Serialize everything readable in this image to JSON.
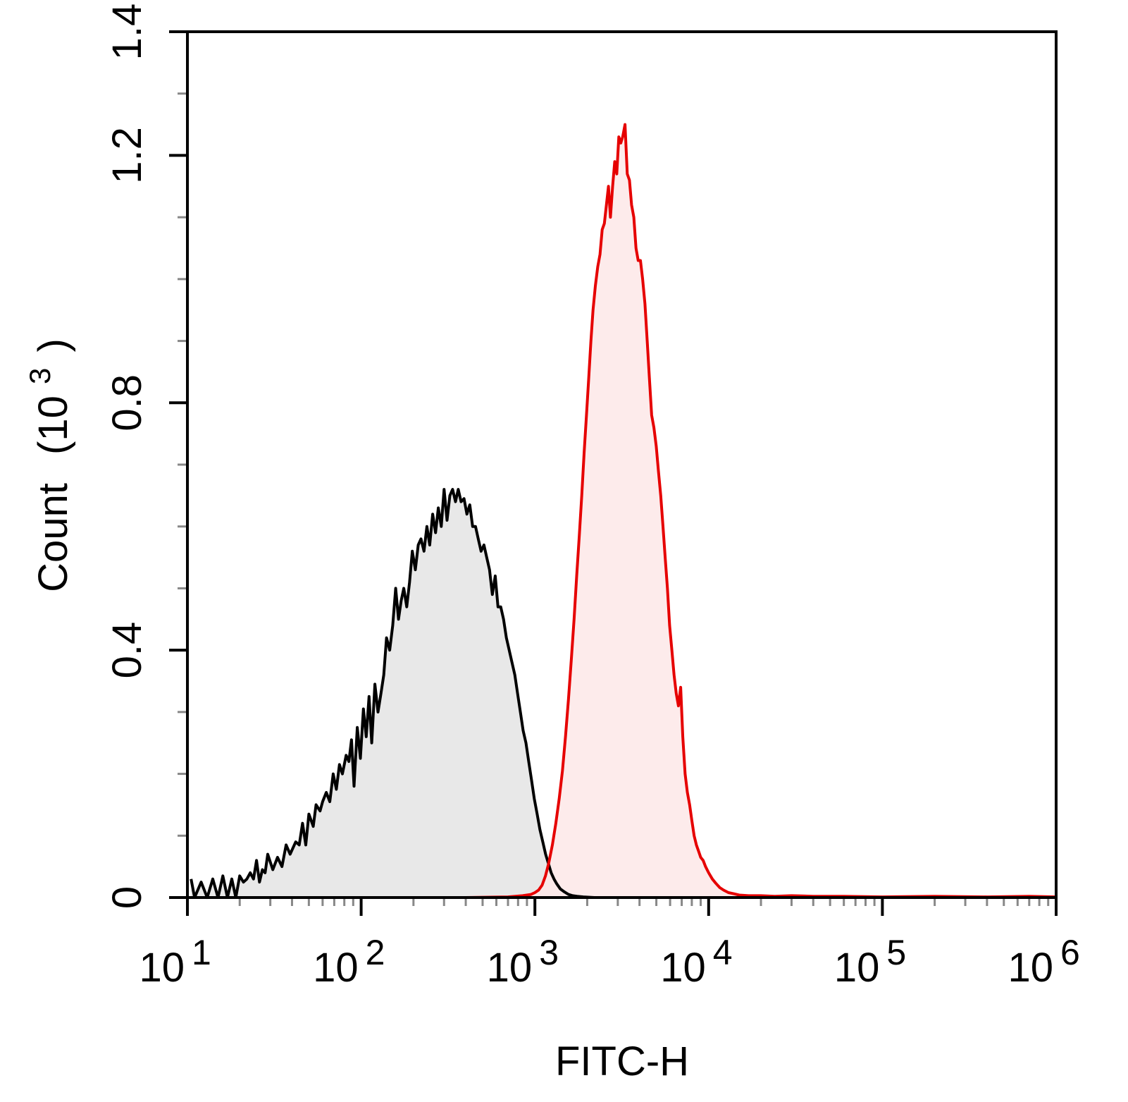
{
  "chart_data": {
    "type": "area",
    "xlabel": "FITC-H",
    "ylabel": "Count (10³)",
    "ylabel_main": "Count",
    "ylabel_unit_open": "(10",
    "ylabel_unit_exp": "3",
    "ylabel_unit_close": ")",
    "x_scale": "log",
    "xlim": [
      10,
      1000000
    ],
    "ylim": [
      0,
      1.4
    ],
    "grid": false,
    "x_ticks": [
      {
        "base": "10",
        "exp": "1",
        "value": 10
      },
      {
        "base": "10",
        "exp": "2",
        "value": 100
      },
      {
        "base": "10",
        "exp": "3",
        "value": 1000
      },
      {
        "base": "10",
        "exp": "4",
        "value": 10000
      },
      {
        "base": "10",
        "exp": "5",
        "value": 100000
      },
      {
        "base": "10",
        "exp": "6",
        "value": 1000000
      }
    ],
    "y_ticks": [
      {
        "label": "0",
        "value": 0
      },
      {
        "label": "0.4",
        "value": 0.4
      },
      {
        "label": "0.8",
        "value": 0.8
      },
      {
        "label": "1.2",
        "value": 1.2
      },
      {
        "label": "1.4",
        "value": 1.4
      }
    ],
    "series": [
      {
        "color": "#000000",
        "fill": "#e8e8e8",
        "points": [
          [
            10.5,
            0.03
          ],
          [
            11,
            0.0
          ],
          [
            12,
            0.025
          ],
          [
            13,
            0.0
          ],
          [
            14,
            0.03
          ],
          [
            15,
            0.0
          ],
          [
            16,
            0.035
          ],
          [
            17,
            0.0
          ],
          [
            18,
            0.03
          ],
          [
            19,
            0.0
          ],
          [
            20,
            0.035
          ],
          [
            21,
            0.025
          ],
          [
            22,
            0.03
          ],
          [
            23,
            0.04
          ],
          [
            24,
            0.03
          ],
          [
            25,
            0.06
          ],
          [
            26,
            0.025
          ],
          [
            27,
            0.045
          ],
          [
            28,
            0.04
          ],
          [
            29,
            0.07
          ],
          [
            31,
            0.045
          ],
          [
            33,
            0.065
          ],
          [
            35,
            0.05
          ],
          [
            37,
            0.085
          ],
          [
            39,
            0.07
          ],
          [
            42,
            0.09
          ],
          [
            44,
            0.085
          ],
          [
            46,
            0.12
          ],
          [
            48,
            0.085
          ],
          [
            50,
            0.135
          ],
          [
            53,
            0.115
          ],
          [
            55,
            0.15
          ],
          [
            58,
            0.14
          ],
          [
            60,
            0.155
          ],
          [
            63,
            0.17
          ],
          [
            66,
            0.155
          ],
          [
            69,
            0.2
          ],
          [
            72,
            0.175
          ],
          [
            75,
            0.215
          ],
          [
            78,
            0.2
          ],
          [
            82,
            0.23
          ],
          [
            85,
            0.22
          ],
          [
            88,
            0.255
          ],
          [
            91,
            0.18
          ],
          [
            95,
            0.275
          ],
          [
            99,
            0.225
          ],
          [
            103,
            0.305
          ],
          [
            107,
            0.26
          ],
          [
            111,
            0.325
          ],
          [
            115,
            0.25
          ],
          [
            120,
            0.345
          ],
          [
            125,
            0.3
          ],
          [
            130,
            0.33
          ],
          [
            135,
            0.36
          ],
          [
            140,
            0.42
          ],
          [
            146,
            0.4
          ],
          [
            152,
            0.44
          ],
          [
            158,
            0.5
          ],
          [
            164,
            0.45
          ],
          [
            170,
            0.48
          ],
          [
            176,
            0.5
          ],
          [
            183,
            0.47
          ],
          [
            190,
            0.51
          ],
          [
            197,
            0.56
          ],
          [
            205,
            0.53
          ],
          [
            213,
            0.57
          ],
          [
            221,
            0.58
          ],
          [
            230,
            0.56
          ],
          [
            239,
            0.6
          ],
          [
            248,
            0.57
          ],
          [
            258,
            0.62
          ],
          [
            268,
            0.59
          ],
          [
            278,
            0.63
          ],
          [
            289,
            0.6
          ],
          [
            300,
            0.66
          ],
          [
            312,
            0.61
          ],
          [
            324,
            0.65
          ],
          [
            336,
            0.66
          ],
          [
            349,
            0.64
          ],
          [
            362,
            0.66
          ],
          [
            376,
            0.64
          ],
          [
            391,
            0.645
          ],
          [
            406,
            0.62
          ],
          [
            422,
            0.635
          ],
          [
            438,
            0.6
          ],
          [
            455,
            0.6
          ],
          [
            472,
            0.58
          ],
          [
            490,
            0.56
          ],
          [
            509,
            0.57
          ],
          [
            528,
            0.55
          ],
          [
            548,
            0.53
          ],
          [
            569,
            0.49
          ],
          [
            591,
            0.52
          ],
          [
            613,
            0.47
          ],
          [
            636,
            0.47
          ],
          [
            660,
            0.45
          ],
          [
            685,
            0.42
          ],
          [
            711,
            0.4
          ],
          [
            738,
            0.38
          ],
          [
            766,
            0.36
          ],
          [
            795,
            0.33
          ],
          [
            825,
            0.3
          ],
          [
            856,
            0.27
          ],
          [
            888,
            0.25
          ],
          [
            921,
            0.22
          ],
          [
            956,
            0.19
          ],
          [
            992,
            0.16
          ],
          [
            1030,
            0.135
          ],
          [
            1069,
            0.11
          ],
          [
            1110,
            0.09
          ],
          [
            1152,
            0.07
          ],
          [
            1196,
            0.055
          ],
          [
            1241,
            0.04
          ],
          [
            1288,
            0.03
          ],
          [
            1337,
            0.022
          ],
          [
            1400,
            0.014
          ],
          [
            1480,
            0.009
          ],
          [
            1560,
            0.005
          ],
          [
            1650,
            0.003
          ],
          [
            1750,
            0.002
          ],
          [
            1900,
            0.001
          ],
          [
            2200,
            0.0
          ],
          [
            3000,
            0.0
          ],
          [
            5000,
            0.0
          ],
          [
            10000,
            0.0
          ],
          [
            1000000,
            0.0
          ]
        ]
      },
      {
        "color": "#e60000",
        "fill": "#fde8e8",
        "points": [
          [
            10,
            0.0
          ],
          [
            400,
            0.0
          ],
          [
            700,
            0.001
          ],
          [
            850,
            0.003
          ],
          [
            950,
            0.005
          ],
          [
            1000,
            0.008
          ],
          [
            1050,
            0.012
          ],
          [
            1100,
            0.02
          ],
          [
            1150,
            0.035
          ],
          [
            1200,
            0.055
          ],
          [
            1260,
            0.085
          ],
          [
            1320,
            0.12
          ],
          [
            1380,
            0.16
          ],
          [
            1440,
            0.205
          ],
          [
            1500,
            0.26
          ],
          [
            1560,
            0.32
          ],
          [
            1620,
            0.385
          ],
          [
            1680,
            0.45
          ],
          [
            1740,
            0.52
          ],
          [
            1800,
            0.585
          ],
          [
            1860,
            0.65
          ],
          [
            1920,
            0.72
          ],
          [
            1980,
            0.78
          ],
          [
            2040,
            0.84
          ],
          [
            2100,
            0.9
          ],
          [
            2160,
            0.95
          ],
          [
            2230,
            0.99
          ],
          [
            2300,
            1.02
          ],
          [
            2370,
            1.04
          ],
          [
            2440,
            1.08
          ],
          [
            2510,
            1.09
          ],
          [
            2580,
            1.12
          ],
          [
            2650,
            1.15
          ],
          [
            2720,
            1.1
          ],
          [
            2800,
            1.15
          ],
          [
            2880,
            1.19
          ],
          [
            2960,
            1.17
          ],
          [
            3040,
            1.23
          ],
          [
            3120,
            1.22
          ],
          [
            3200,
            1.23
          ],
          [
            3300,
            1.25
          ],
          [
            3400,
            1.17
          ],
          [
            3500,
            1.16
          ],
          [
            3600,
            1.12
          ],
          [
            3710,
            1.1
          ],
          [
            3820,
            1.05
          ],
          [
            3930,
            1.03
          ],
          [
            4050,
            1.03
          ],
          [
            4170,
            1.0
          ],
          [
            4300,
            0.96
          ],
          [
            4430,
            0.9
          ],
          [
            4560,
            0.84
          ],
          [
            4700,
            0.78
          ],
          [
            4840,
            0.76
          ],
          [
            4990,
            0.73
          ],
          [
            5140,
            0.69
          ],
          [
            5300,
            0.65
          ],
          [
            5460,
            0.6
          ],
          [
            5620,
            0.55
          ],
          [
            5790,
            0.5
          ],
          [
            5960,
            0.44
          ],
          [
            6140,
            0.4
          ],
          [
            6320,
            0.36
          ],
          [
            6510,
            0.33
          ],
          [
            6700,
            0.31
          ],
          [
            6900,
            0.34
          ],
          [
            7100,
            0.26
          ],
          [
            7320,
            0.2
          ],
          [
            7540,
            0.17
          ],
          [
            7770,
            0.15
          ],
          [
            8000,
            0.125
          ],
          [
            8250,
            0.1
          ],
          [
            8500,
            0.085
          ],
          [
            8750,
            0.075
          ],
          [
            9000,
            0.065
          ],
          [
            9300,
            0.06
          ],
          [
            9600,
            0.05
          ],
          [
            10000,
            0.04
          ],
          [
            10500,
            0.03
          ],
          [
            11000,
            0.023
          ],
          [
            11600,
            0.016
          ],
          [
            12200,
            0.012
          ],
          [
            13000,
            0.008
          ],
          [
            14000,
            0.006
          ],
          [
            15000,
            0.004
          ],
          [
            17000,
            0.003
          ],
          [
            20000,
            0.003
          ],
          [
            24000,
            0.002
          ],
          [
            30000,
            0.003
          ],
          [
            40000,
            0.002
          ],
          [
            60000,
            0.002
          ],
          [
            100000,
            0.001
          ],
          [
            200000,
            0.002
          ],
          [
            400000,
            0.001
          ],
          [
            700000,
            0.002
          ],
          [
            1000000,
            0.001
          ]
        ]
      }
    ]
  }
}
